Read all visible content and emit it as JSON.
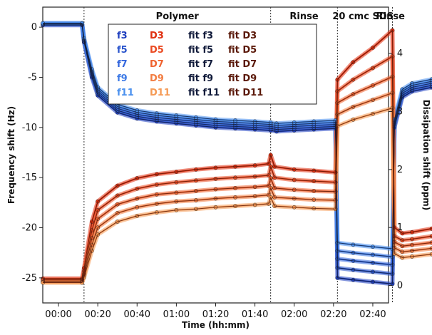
{
  "chart_data": {
    "type": "line",
    "xlabel": "Time (hh:mm)",
    "ylabel": "Frequency shift (Hz)",
    "y2label": "Dissipation shift (ppm)",
    "xticks": [
      "00:00",
      "00:20",
      "00:40",
      "01:00",
      "01:20",
      "01:40",
      "02:00",
      "02:20",
      "02:40"
    ],
    "xlim_minutes": [
      -8,
      168
    ],
    "ylim": [
      -27.5,
      2
    ],
    "yticks": [
      0,
      -5,
      -10,
      -15,
      -20,
      -25
    ],
    "y2lim": [
      -0.3,
      4.8
    ],
    "y2ticks": [
      0,
      1,
      2,
      3,
      4
    ],
    "phases": [
      {
        "label": "Polymer",
        "start_min": 13,
        "end_min": 108
      },
      {
        "label": "Rinse",
        "start_min": 108,
        "end_min": 142
      },
      {
        "label": "20 cmc SDS",
        "start_min": 142,
        "end_min": 170
      },
      {
        "label": "Rinse",
        "start_min": 170,
        "end_min": 200
      }
    ],
    "phase_boundaries_min": [
      13,
      108,
      142,
      170
    ],
    "legend_position": "top-center",
    "legend_columns": [
      [
        "f3",
        "f5",
        "f7",
        "f9",
        "f11"
      ],
      [
        "D3",
        "D5",
        "D7",
        "D9",
        "D11"
      ],
      [
        "fit f3",
        "fit f5",
        "fit f7",
        "fit f9",
        "fit f11"
      ],
      [
        "fit D3",
        "fit D5",
        "fit D7",
        "fit D9",
        "fit D11"
      ]
    ],
    "colors": {
      "f3": "#1f3fbf",
      "f5": "#2a55cc",
      "f7": "#3366dd",
      "f9": "#3d7ae6",
      "f11": "#4a90ee",
      "D3": "#e03010",
      "D5": "#ea4a22",
      "D7": "#ef6330",
      "D9": "#f27d42",
      "D11": "#f59a55",
      "fit_f": "#101a3a",
      "fit_D": "#5a1808"
    },
    "series": [
      {
        "name": "f3",
        "axis": "left",
        "x": [
          -8,
          12,
          13,
          17,
          20,
          30,
          40,
          50,
          60,
          70,
          80,
          90,
          100,
          108,
          111,
          120,
          130,
          141,
          142,
          150,
          160,
          170,
          171,
          175,
          180,
          190,
          199
        ],
        "y": [
          0.2,
          0.2,
          -1.5,
          -5,
          -6.8,
          -8.5,
          -9.1,
          -9.4,
          -9.6,
          -9.8,
          -10.0,
          -10.1,
          -10.2,
          -10.3,
          -10.4,
          -10.3,
          -10.2,
          -10.1,
          -25,
          -25.2,
          -25.4,
          -25.6,
          -10,
          -7,
          -6.4,
          -6.0,
          -5.9
        ]
      },
      {
        "name": "f5",
        "axis": "left",
        "x": [
          -8,
          12,
          13,
          17,
          20,
          30,
          40,
          50,
          60,
          70,
          80,
          90,
          100,
          108,
          111,
          120,
          130,
          141,
          142,
          150,
          160,
          170,
          171,
          175,
          180,
          190,
          199
        ],
        "y": [
          0.3,
          0.3,
          -1.4,
          -4.8,
          -6.6,
          -8.3,
          -8.9,
          -9.2,
          -9.4,
          -9.6,
          -9.8,
          -9.9,
          -10.0,
          -10.1,
          -10.2,
          -10.1,
          -10.0,
          -9.9,
          -24,
          -24.2,
          -24.4,
          -24.6,
          -9.8,
          -6.8,
          -6.2,
          -5.8,
          -5.7
        ]
      },
      {
        "name": "f7",
        "axis": "left",
        "x": [
          -8,
          12,
          13,
          17,
          20,
          30,
          40,
          50,
          60,
          70,
          80,
          90,
          100,
          108,
          111,
          120,
          130,
          141,
          142,
          150,
          160,
          170,
          171,
          175,
          180,
          190,
          199
        ],
        "y": [
          0.3,
          0.3,
          -1.3,
          -4.6,
          -6.4,
          -8.1,
          -8.7,
          -9.0,
          -9.2,
          -9.4,
          -9.6,
          -9.7,
          -9.8,
          -9.9,
          -10.0,
          -9.9,
          -9.8,
          -9.7,
          -23.1,
          -23.3,
          -23.5,
          -23.7,
          -9.6,
          -6.6,
          -6.0,
          -5.6,
          -5.5
        ]
      },
      {
        "name": "f9",
        "axis": "left",
        "x": [
          -8,
          12,
          13,
          17,
          20,
          30,
          40,
          50,
          60,
          70,
          80,
          90,
          100,
          108,
          111,
          120,
          130,
          141,
          142,
          150,
          160,
          170,
          171,
          175,
          180,
          190,
          199
        ],
        "y": [
          0.4,
          0.4,
          -1.2,
          -4.4,
          -6.2,
          -7.9,
          -8.5,
          -8.8,
          -9.0,
          -9.2,
          -9.4,
          -9.5,
          -9.6,
          -9.7,
          -9.8,
          -9.7,
          -9.6,
          -9.5,
          -22.3,
          -22.5,
          -22.7,
          -22.9,
          -9.4,
          -6.4,
          -5.8,
          -5.4,
          -5.3
        ]
      },
      {
        "name": "f11",
        "axis": "left",
        "x": [
          -8,
          12,
          13,
          17,
          20,
          30,
          40,
          50,
          60,
          70,
          80,
          90,
          100,
          108,
          111,
          120,
          130,
          141,
          142,
          150,
          160,
          170,
          171,
          175,
          180,
          190,
          199
        ],
        "y": [
          0.4,
          0.4,
          -1.1,
          -4.2,
          -6.0,
          -7.7,
          -8.3,
          -8.6,
          -8.8,
          -9.0,
          -9.2,
          -9.3,
          -9.4,
          -9.5,
          -9.6,
          -9.5,
          -9.4,
          -9.3,
          -21.5,
          -21.7,
          -21.9,
          -22.1,
          -9.2,
          -6.2,
          -5.6,
          -5.2,
          -5.1
        ]
      },
      {
        "name": "D3",
        "axis": "right",
        "x": [
          -8,
          12,
          13,
          17,
          20,
          30,
          40,
          50,
          60,
          70,
          80,
          90,
          100,
          107,
          108,
          110,
          120,
          130,
          141,
          142,
          150,
          160,
          170,
          171,
          175,
          180,
          190,
          199
        ],
        "y": [
          0.12,
          0.12,
          0.3,
          1.1,
          1.45,
          1.72,
          1.85,
          1.92,
          1.96,
          2.0,
          2.03,
          2.05,
          2.07,
          2.1,
          2.25,
          2.05,
          2.0,
          1.98,
          1.95,
          3.55,
          3.85,
          4.1,
          4.4,
          1.0,
          0.9,
          0.92,
          0.98,
          1.02
        ]
      },
      {
        "name": "D5",
        "axis": "right",
        "x": [
          -8,
          12,
          13,
          17,
          20,
          30,
          40,
          50,
          60,
          70,
          80,
          90,
          100,
          107,
          108,
          110,
          120,
          130,
          141,
          142,
          150,
          160,
          170,
          171,
          175,
          180,
          190,
          199
        ],
        "y": [
          0.1,
          0.1,
          0.25,
          0.95,
          1.3,
          1.55,
          1.67,
          1.74,
          1.78,
          1.81,
          1.84,
          1.86,
          1.88,
          1.9,
          2.05,
          1.86,
          1.82,
          1.8,
          1.78,
          3.35,
          3.55,
          3.75,
          3.95,
          0.85,
          0.78,
          0.8,
          0.85,
          0.88
        ]
      },
      {
        "name": "D7",
        "axis": "right",
        "x": [
          -8,
          12,
          13,
          17,
          20,
          30,
          40,
          50,
          60,
          70,
          80,
          90,
          100,
          107,
          108,
          110,
          120,
          130,
          141,
          142,
          150,
          160,
          170,
          171,
          175,
          180,
          190,
          199
        ],
        "y": [
          0.08,
          0.08,
          0.2,
          0.82,
          1.15,
          1.4,
          1.5,
          1.57,
          1.6,
          1.63,
          1.66,
          1.68,
          1.7,
          1.72,
          1.85,
          1.68,
          1.65,
          1.63,
          1.62,
          3.15,
          3.3,
          3.45,
          3.6,
          0.75,
          0.68,
          0.7,
          0.74,
          0.77
        ]
      },
      {
        "name": "D9",
        "axis": "right",
        "x": [
          -8,
          12,
          13,
          17,
          20,
          30,
          40,
          50,
          60,
          70,
          80,
          90,
          100,
          107,
          108,
          110,
          120,
          130,
          141,
          142,
          150,
          160,
          170,
          171,
          175,
          180,
          190,
          199
        ],
        "y": [
          0.06,
          0.06,
          0.17,
          0.7,
          1.0,
          1.25,
          1.35,
          1.41,
          1.45,
          1.47,
          1.5,
          1.52,
          1.54,
          1.56,
          1.68,
          1.52,
          1.5,
          1.48,
          1.47,
          2.95,
          3.08,
          3.2,
          3.32,
          0.65,
          0.58,
          0.6,
          0.64,
          0.67
        ]
      },
      {
        "name": "D11",
        "axis": "right",
        "x": [
          -8,
          12,
          13,
          17,
          20,
          30,
          40,
          50,
          60,
          70,
          80,
          90,
          100,
          107,
          108,
          110,
          120,
          130,
          141,
          142,
          150,
          160,
          170,
          171,
          175,
          180,
          190,
          199
        ],
        "y": [
          0.05,
          0.05,
          0.14,
          0.6,
          0.88,
          1.1,
          1.2,
          1.26,
          1.3,
          1.32,
          1.35,
          1.37,
          1.39,
          1.41,
          1.52,
          1.37,
          1.35,
          1.33,
          1.32,
          2.75,
          2.86,
          2.96,
          3.06,
          0.55,
          0.48,
          0.5,
          0.54,
          0.57
        ]
      }
    ]
  }
}
